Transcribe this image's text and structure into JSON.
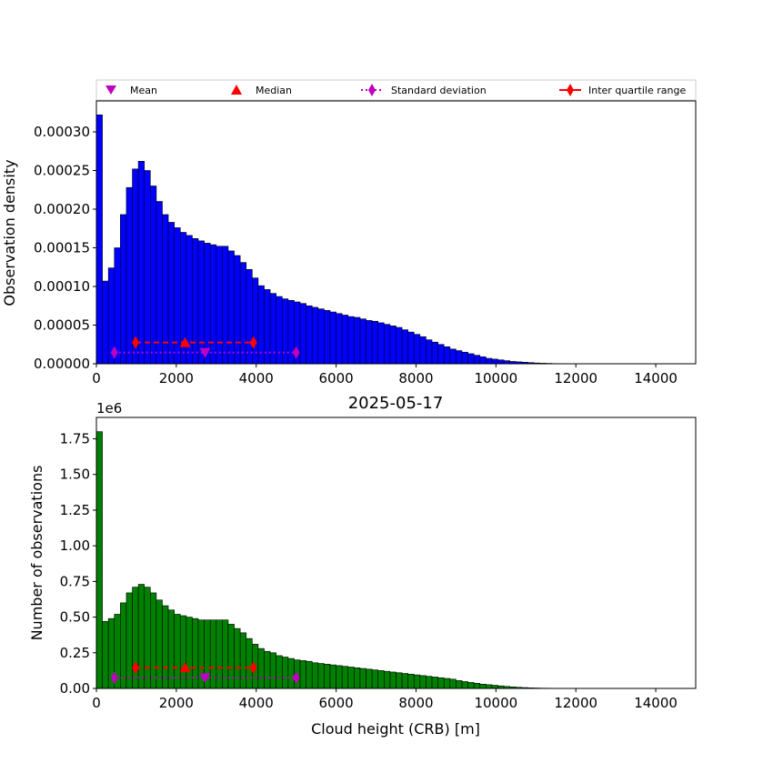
{
  "colors": {
    "top_bars": "#0000ff",
    "bottom_bars": "#008000",
    "bar_edge": "#000000",
    "mean": "#bf00bf",
    "median": "#ff0000",
    "std": "#bf00bf",
    "iqr": "#ff0000"
  },
  "legend": {
    "mean": "Mean",
    "median": "Median",
    "std": "Standard deviation",
    "iqr": "Inter quartile range"
  },
  "chart_data": [
    {
      "type": "bar",
      "name": "density",
      "ylabel": "Observation density",
      "xlim": [
        0,
        15000
      ],
      "ylim": [
        0,
        0.00034
      ],
      "yticks": [
        "0.00000",
        "0.00005",
        "0.00010",
        "0.00015",
        "0.00020",
        "0.00025",
        "0.00030"
      ],
      "ytick_values": [
        0,
        5e-05,
        0.0001,
        0.00015,
        0.0002,
        0.00025,
        0.0003
      ],
      "xticks": [
        "0",
        "2000",
        "4000",
        "6000",
        "8000",
        "10000",
        "12000",
        "14000"
      ],
      "xtick_values": [
        0,
        2000,
        4000,
        6000,
        8000,
        10000,
        12000,
        14000
      ],
      "bin_width": 150,
      "values": [
        0.000322,
        0.000107,
        0.000124,
        0.00015,
        0.000193,
        0.000228,
        0.000252,
        0.000262,
        0.00025,
        0.00023,
        0.00021,
        0.000193,
        0.000183,
        0.000176,
        0.00017,
        0.000166,
        0.000162,
        0.000159,
        0.000156,
        0.000154,
        0.000152,
        0.000152,
        0.000146,
        0.00014,
        0.000131,
        0.000122,
        0.000111,
        0.000101,
        9.6e-05,
        9.1e-05,
        8.7e-05,
        8.4e-05,
        8.2e-05,
        8e-05,
        7.8e-05,
        7.5e-05,
        7.3e-05,
        7.1e-05,
        6.9e-05,
        6.7e-05,
        6.5e-05,
        6.3e-05,
        6.1e-05,
        6e-05,
        5.8e-05,
        5.6e-05,
        5.5e-05,
        5.3e-05,
        5.1e-05,
        4.9e-05,
        4.7e-05,
        4.4e-05,
        4.1e-05,
        3.8e-05,
        3.5e-05,
        3.1e-05,
        2.8e-05,
        2.5e-05,
        2.2e-05,
        1.9e-05,
        1.7e-05,
        1.5e-05,
        1.3e-05,
        1.1e-05,
        9e-06,
        7e-06,
        6e-06,
        5e-06,
        4e-06,
        3e-06,
        2.5e-06,
        2e-06,
        1.5e-06,
        1e-06,
        7e-07,
        5e-07,
        3e-07,
        2e-07,
        1e-07,
        5e-08
      ],
      "mean": {
        "x": 2720,
        "y": 1.45e-05
      },
      "median": {
        "x": 2220,
        "y": 2.75e-05
      },
      "std": {
        "x": [
          450,
          5000
        ],
        "y": 1.45e-05
      },
      "iqr": {
        "x": [
          980,
          3930
        ],
        "y": 2.75e-05
      }
    },
    {
      "type": "bar",
      "name": "counts",
      "title": "2025-05-17",
      "xlabel": "Cloud height (CRB) [m]",
      "ylabel": "Number of observations",
      "offset_label": "1e6",
      "xlim": [
        0,
        15000
      ],
      "ylim": [
        0,
        1.9
      ],
      "yticks": [
        "0.00",
        "0.25",
        "0.50",
        "0.75",
        "1.00",
        "1.25",
        "1.50",
        "1.75"
      ],
      "ytick_values": [
        0,
        0.25,
        0.5,
        0.75,
        1.0,
        1.25,
        1.5,
        1.75
      ],
      "xticks": [
        "0",
        "2000",
        "4000",
        "6000",
        "8000",
        "10000",
        "12000",
        "14000"
      ],
      "xtick_values": [
        0,
        2000,
        4000,
        6000,
        8000,
        10000,
        12000,
        14000
      ],
      "bin_width": 150,
      "values": [
        1.8,
        0.47,
        0.49,
        0.52,
        0.6,
        0.67,
        0.71,
        0.73,
        0.71,
        0.67,
        0.62,
        0.58,
        0.55,
        0.52,
        0.51,
        0.5,
        0.49,
        0.48,
        0.48,
        0.48,
        0.48,
        0.48,
        0.45,
        0.42,
        0.39,
        0.35,
        0.31,
        0.28,
        0.26,
        0.25,
        0.23,
        0.22,
        0.21,
        0.2,
        0.195,
        0.19,
        0.18,
        0.175,
        0.17,
        0.165,
        0.16,
        0.155,
        0.15,
        0.145,
        0.14,
        0.135,
        0.13,
        0.125,
        0.12,
        0.115,
        0.11,
        0.105,
        0.1,
        0.095,
        0.09,
        0.085,
        0.08,
        0.075,
        0.07,
        0.065,
        0.055,
        0.048,
        0.042,
        0.036,
        0.03,
        0.026,
        0.022,
        0.018,
        0.014,
        0.011,
        0.008,
        0.006,
        0.004,
        0.003,
        0.002,
        0.0015,
        0.001,
        0.0008,
        0.0006,
        0.0004
      ],
      "mean": {
        "x": 2720,
        "y": 0.075
      },
      "median": {
        "x": 2220,
        "y": 0.145
      },
      "std": {
        "x": [
          450,
          5000
        ],
        "y": 0.075
      },
      "iqr": {
        "x": [
          980,
          3930
        ],
        "y": 0.145
      }
    }
  ]
}
